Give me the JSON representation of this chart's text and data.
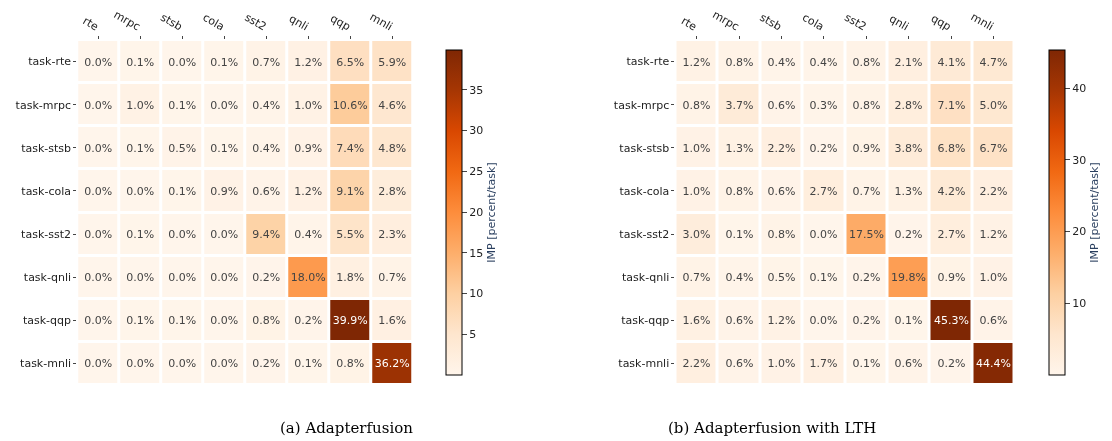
{
  "chart_data": [
    {
      "type": "heatmap",
      "title": "(a) Adapterfusion",
      "clabel": "IMP [percent/task]",
      "categories": [
        "rte",
        "mrpc",
        "stsb",
        "cola",
        "sst2",
        "qnli",
        "qqp",
        "mnli"
      ],
      "y_categories": [
        "task-rte",
        "task-mrpc",
        "task-stsb",
        "task-cola",
        "task-sst2",
        "task-qnli",
        "task-qqp",
        "task-mnli"
      ],
      "cells": [
        [
          0.0,
          0.1,
          0.0,
          0.1,
          0.7,
          1.2,
          6.5,
          5.9
        ],
        [
          0.0,
          1.0,
          0.1,
          0.0,
          0.4,
          1.0,
          10.6,
          4.6
        ],
        [
          0.0,
          0.1,
          0.5,
          0.1,
          0.4,
          0.9,
          7.4,
          4.8
        ],
        [
          0.0,
          0.0,
          0.1,
          0.9,
          0.6,
          1.2,
          9.1,
          2.8
        ],
        [
          0.0,
          0.1,
          0.0,
          0.0,
          9.4,
          0.4,
          5.5,
          2.3
        ],
        [
          0.0,
          0.0,
          0.0,
          0.0,
          0.2,
          18.0,
          1.8,
          0.7
        ],
        [
          0.0,
          0.1,
          0.1,
          0.0,
          0.8,
          0.2,
          39.9,
          1.6
        ],
        [
          0.0,
          0.0,
          0.0,
          0.0,
          0.2,
          0.1,
          0.8,
          36.2
        ]
      ],
      "cell_labels": [
        [
          "0.0%",
          "0.1%",
          "0.0%",
          "0.1%",
          "0.7%",
          "1.2%",
          "6.5%",
          "5.9%"
        ],
        [
          "0.0%",
          "1.0%",
          "0.1%",
          "0.0%",
          "0.4%",
          "1.0%",
          "10.6%",
          "4.6%"
        ],
        [
          "0.0%",
          "0.1%",
          "0.5%",
          "0.1%",
          "0.4%",
          "0.9%",
          "7.4%",
          "4.8%"
        ],
        [
          "0.0%",
          "0.0%",
          "0.1%",
          "0.9%",
          "0.6%",
          "1.2%",
          "9.1%",
          "2.8%"
        ],
        [
          "0.0%",
          "0.1%",
          "0.0%",
          "0.0%",
          "9.4%",
          "0.4%",
          "5.5%",
          "2.3%"
        ],
        [
          "0.0%",
          "0.0%",
          "0.0%",
          "0.0%",
          "0.2%",
          "18.0%",
          "1.8%",
          "0.7%"
        ],
        [
          "0.0%",
          "0.1%",
          "0.1%",
          "0.0%",
          "0.8%",
          "0.2%",
          "39.9%",
          "1.6%"
        ],
        [
          "0.0%",
          "0.0%",
          "0.0%",
          "0.0%",
          "0.2%",
          "0.1%",
          "0.8%",
          "36.2%"
        ]
      ],
      "clim": [
        0.0,
        39.9
      ],
      "cticks": [
        5,
        10,
        15,
        20,
        25,
        30,
        35
      ]
    },
    {
      "type": "heatmap",
      "title": "(b) Adapterfusion with LTH",
      "clabel": "IMP [percent/task]",
      "categories": [
        "rte",
        "mrpc",
        "stsb",
        "cola",
        "sst2",
        "qnli",
        "qqp",
        "mnli"
      ],
      "y_categories": [
        "task-rte",
        "task-mrpc",
        "task-stsb",
        "task-cola",
        "task-sst2",
        "task-qnli",
        "task-qqp",
        "task-mnli"
      ],
      "cells": [
        [
          1.2,
          0.8,
          0.4,
          0.4,
          0.8,
          2.1,
          4.1,
          4.7
        ],
        [
          0.8,
          3.7,
          0.6,
          0.3,
          0.8,
          2.8,
          7.1,
          5.0
        ],
        [
          1.0,
          1.3,
          2.2,
          0.2,
          0.9,
          3.8,
          6.8,
          6.7
        ],
        [
          1.0,
          0.8,
          0.6,
          2.7,
          0.7,
          1.3,
          4.2,
          2.2
        ],
        [
          3.0,
          0.1,
          0.8,
          0.0,
          17.5,
          0.2,
          2.7,
          1.2
        ],
        [
          0.7,
          0.4,
          0.5,
          0.1,
          0.2,
          19.8,
          0.9,
          1.0
        ],
        [
          1.6,
          0.6,
          1.2,
          0.0,
          0.2,
          0.1,
          45.3,
          0.6
        ],
        [
          2.2,
          0.6,
          1.0,
          1.7,
          0.1,
          0.6,
          0.2,
          44.4
        ]
      ],
      "cell_labels": [
        [
          "1.2%",
          "0.8%",
          "0.4%",
          "0.4%",
          "0.8%",
          "2.1%",
          "4.1%",
          "4.7%"
        ],
        [
          "0.8%",
          "3.7%",
          "0.6%",
          "0.3%",
          "0.8%",
          "2.8%",
          "7.1%",
          "5.0%"
        ],
        [
          "1.0%",
          "1.3%",
          "2.2%",
          "0.2%",
          "0.9%",
          "3.8%",
          "6.8%",
          "6.7%"
        ],
        [
          "1.0%",
          "0.8%",
          "0.6%",
          "2.7%",
          "0.7%",
          "1.3%",
          "4.2%",
          "2.2%"
        ],
        [
          "3.0%",
          "0.1%",
          "0.8%",
          "0.0%",
          "17.5%",
          "0.2%",
          "2.7%",
          "1.2%"
        ],
        [
          "0.7%",
          "0.4%",
          "0.5%",
          "0.1%",
          "0.2%",
          "19.8%",
          "0.9%",
          "1.0%"
        ],
        [
          "1.6%",
          "0.6%",
          "1.2%",
          "0.0%",
          "0.2%",
          "0.1%",
          "45.3%",
          "0.6%"
        ],
        [
          "2.2%",
          "0.6%",
          "1.0%",
          "1.7%",
          "0.1%",
          "0.6%",
          "0.2%",
          "44.4%"
        ]
      ],
      "clim": [
        0.0,
        45.3
      ],
      "cticks": [
        10,
        20,
        30,
        40
      ]
    }
  ]
}
